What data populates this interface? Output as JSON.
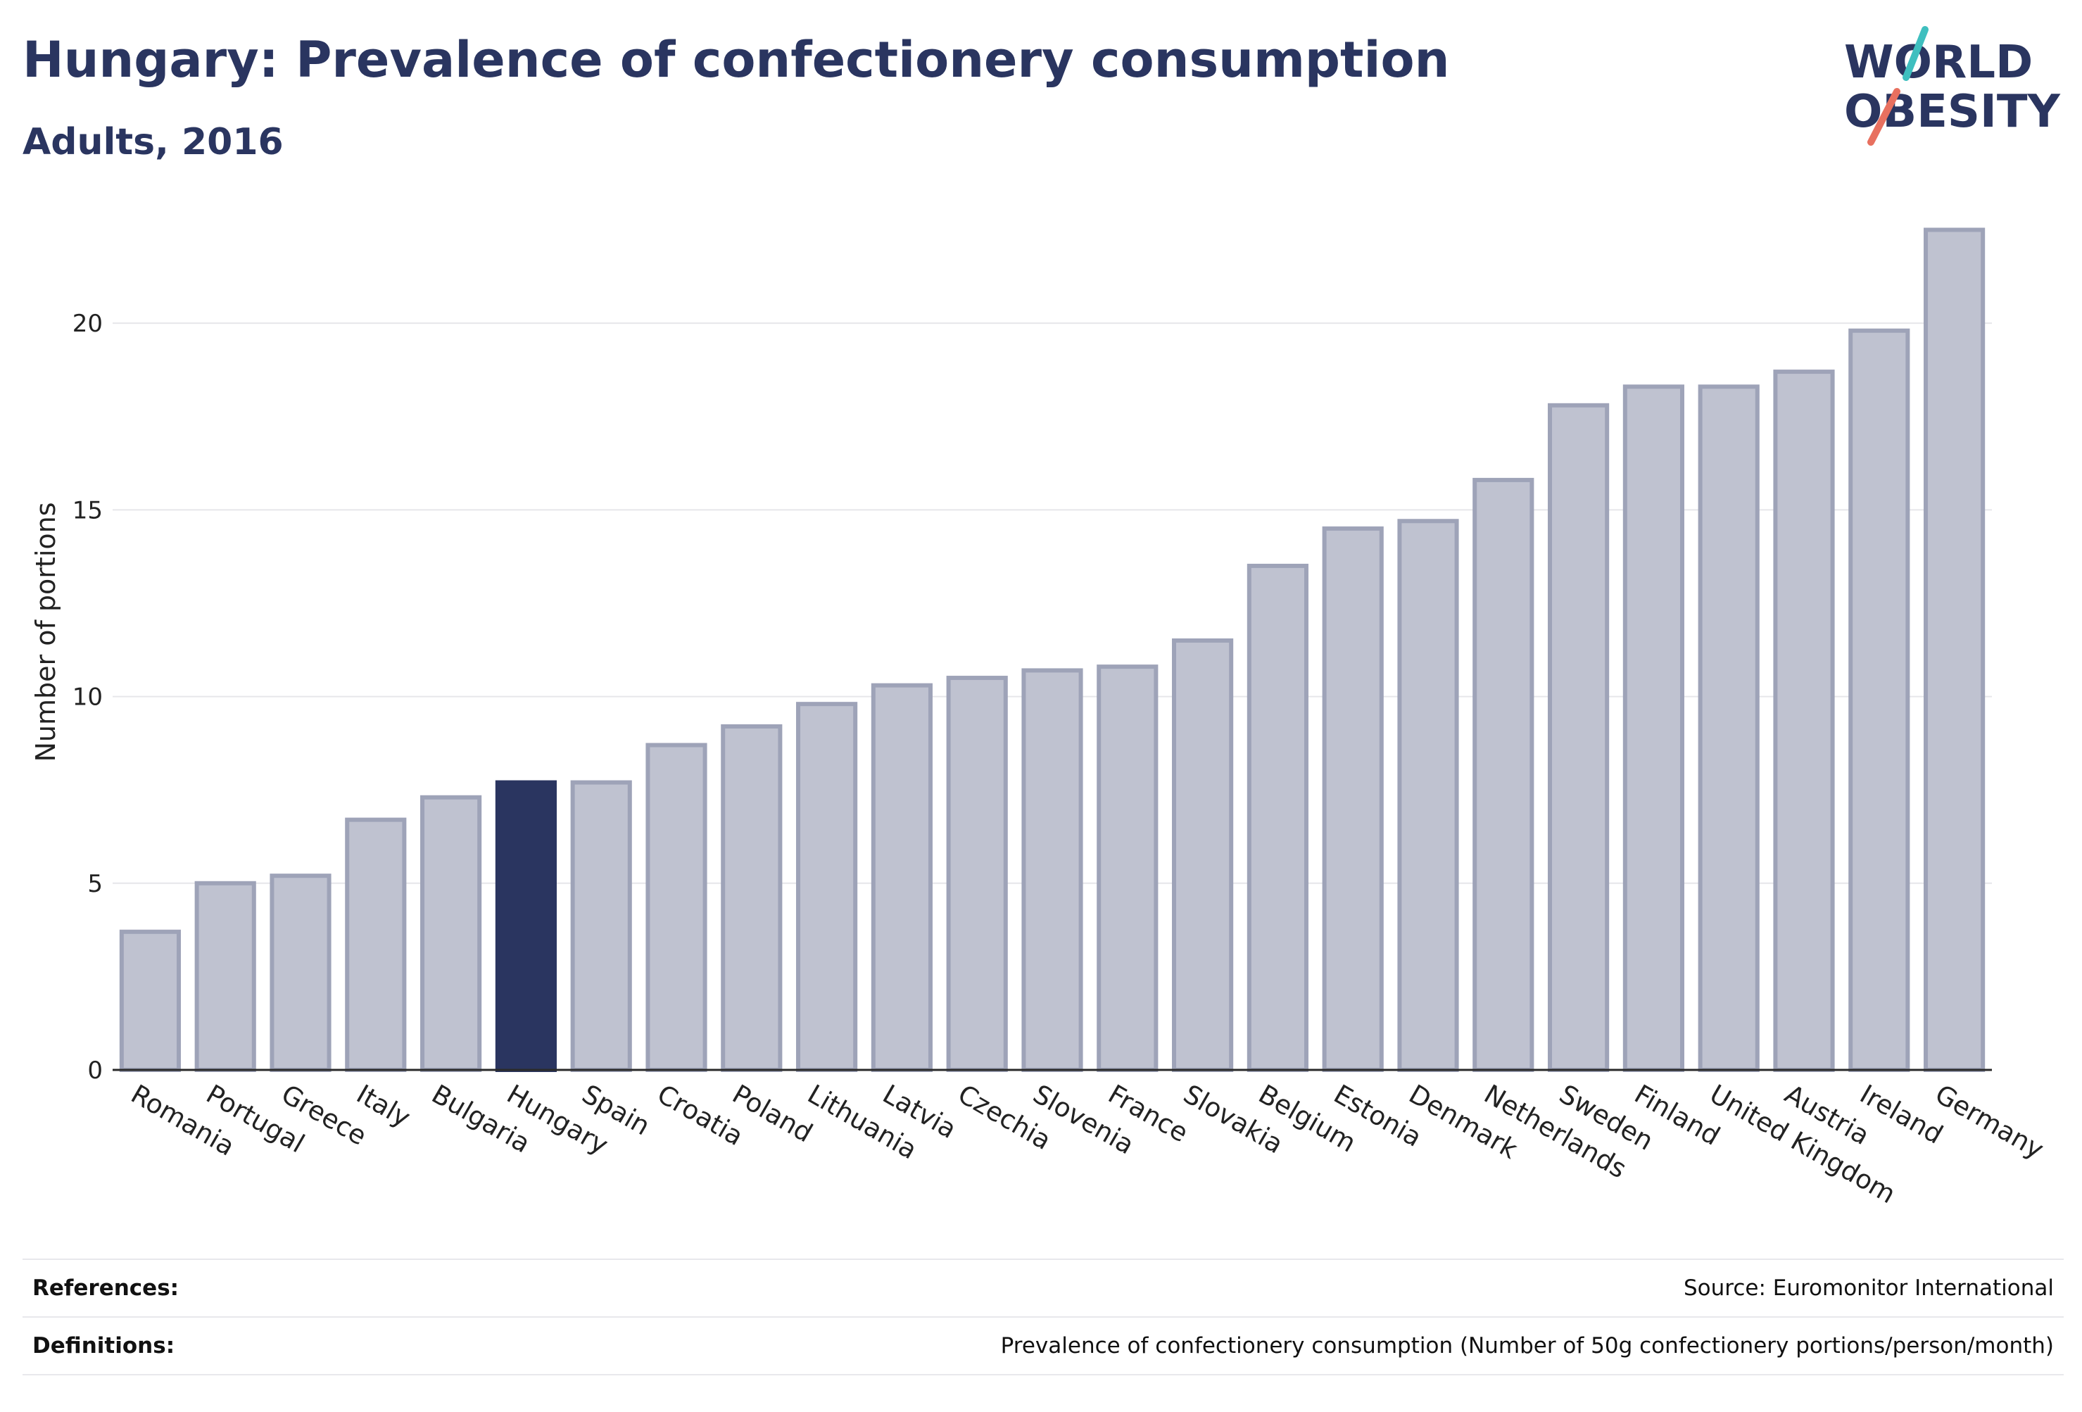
{
  "header": {
    "title": "Hungary: Prevalence of confectionery consumption",
    "subtitle": "Adults, 2016"
  },
  "logo": {
    "line1": "WORLD",
    "line2": "OBESITY",
    "colors": {
      "text": "#2a3560",
      "slash_teal": "#3fbfbf",
      "slash_coral": "#e8705f"
    }
  },
  "colors": {
    "bar": "#bfc2d0",
    "bar_stroke": "#9ea3b8",
    "highlight": "#2a3560",
    "grid": "#e6e6ea",
    "axis": "#2a2a2a"
  },
  "chart_data": {
    "type": "bar",
    "title": "Hungary: Prevalence of confectionery consumption",
    "subtitle": "Adults, 2016",
    "xlabel": "",
    "ylabel": "Number of portions",
    "ylim": [
      0,
      23
    ],
    "yticks": [
      0,
      5,
      10,
      15,
      20
    ],
    "grid": true,
    "highlight": "Hungary",
    "categories": [
      "Romania",
      "Portugal",
      "Greece",
      "Italy",
      "Bulgaria",
      "Hungary",
      "Spain",
      "Croatia",
      "Poland",
      "Lithuania",
      "Latvia",
      "Czechia",
      "Slovenia",
      "France",
      "Slovakia",
      "Belgium",
      "Estonia",
      "Denmark",
      "Netherlands",
      "Sweden",
      "Finland",
      "United Kingdom",
      "Austria",
      "Ireland",
      "Germany"
    ],
    "values": [
      3.7,
      5.0,
      5.2,
      6.7,
      7.3,
      7.7,
      7.7,
      8.7,
      9.2,
      9.8,
      10.3,
      10.5,
      10.7,
      10.8,
      11.5,
      13.5,
      14.5,
      14.7,
      15.8,
      17.8,
      18.3,
      18.3,
      18.7,
      19.8,
      22.5
    ]
  },
  "footer": {
    "references_label": "References:",
    "references_value": "Source: Euromonitor International",
    "definitions_label": "Definitions:",
    "definitions_value": "Prevalence of confectionery consumption (Number of 50g confectionery portions/person/month)"
  }
}
